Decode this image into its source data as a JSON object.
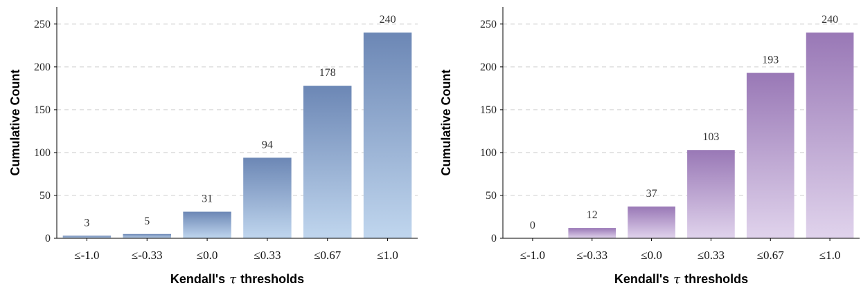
{
  "chart_data": [
    {
      "type": "bar",
      "categories": [
        "≤-1.0",
        "≤-0.33",
        "≤0.0",
        "≤0.33",
        "≤0.67",
        "≤1.0"
      ],
      "values": [
        3,
        5,
        31,
        94,
        178,
        240
      ],
      "xlabel_prefix": "Kendall's",
      "xlabel_symbol": "τ",
      "xlabel_suffix": "thresholds",
      "ylabel": "Cumulative Count",
      "ylim": [
        0,
        270
      ],
      "yticks": [
        0,
        50,
        100,
        150,
        200,
        250
      ],
      "grid": true,
      "gradient": {
        "top": "#6c87b5",
        "bottom": "#c0d6ee"
      }
    },
    {
      "type": "bar",
      "categories": [
        "≤-1.0",
        "≤-0.33",
        "≤0.0",
        "≤0.33",
        "≤0.67",
        "≤1.0"
      ],
      "values": [
        0,
        12,
        37,
        103,
        193,
        240
      ],
      "xlabel_prefix": "Kendall's",
      "xlabel_symbol": "τ",
      "xlabel_suffix": "thresholds",
      "ylabel": "Cumulative Count",
      "ylim": [
        0,
        270
      ],
      "yticks": [
        0,
        50,
        100,
        150,
        200,
        250
      ],
      "grid": true,
      "gradient": {
        "top": "#9978b6",
        "bottom": "#e0d3ec"
      }
    }
  ]
}
